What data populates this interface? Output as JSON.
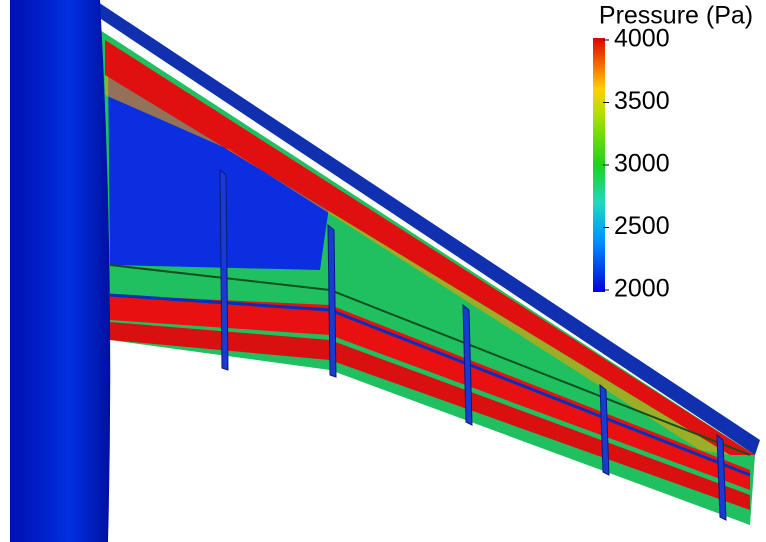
{
  "colorbar": {
    "title": "Pressure (Pa)",
    "range": [
      2000,
      4000
    ],
    "ticks": [
      2000,
      2500,
      3000,
      3500,
      4000
    ]
  }
}
